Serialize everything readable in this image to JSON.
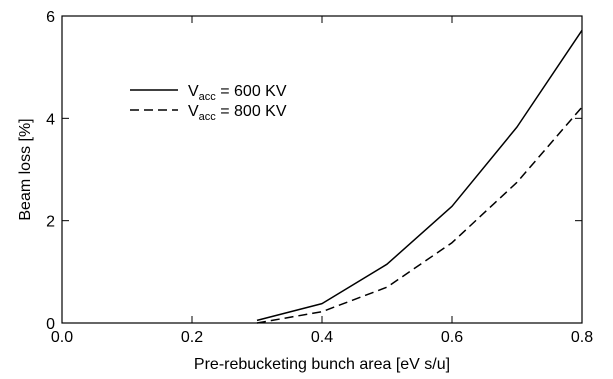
{
  "chart_data": {
    "type": "line",
    "title": "",
    "xlabel": "Pre-rebucketing bunch area [eV s/u]",
    "ylabel": "Beam loss [%]",
    "xlim": [
      0.0,
      0.8
    ],
    "ylim": [
      0,
      6
    ],
    "xticks": [
      0.0,
      0.2,
      0.4,
      0.6,
      0.8
    ],
    "xtick_labels": [
      "0.0",
      "0.2",
      "0.4",
      "0.6",
      "0.8"
    ],
    "yticks": [
      0,
      2,
      4,
      6
    ],
    "ytick_labels": [
      "0",
      "2",
      "4",
      "6"
    ],
    "grid": false,
    "legend_position": "upper-left",
    "series": [
      {
        "name": "V_acc = 600 KV",
        "legend": {
          "base": "V",
          "sub": "acc",
          "rest": " = 600 KV"
        },
        "style": "solid",
        "x": [
          0.3,
          0.4,
          0.5,
          0.6,
          0.7,
          0.8
        ],
        "y": [
          0.05,
          0.38,
          1.15,
          2.28,
          3.83,
          5.72
        ]
      },
      {
        "name": "V_acc = 800 KV",
        "legend": {
          "base": "V",
          "sub": "acc",
          "rest": " = 800 KV"
        },
        "style": "dashed",
        "x": [
          0.3,
          0.4,
          0.5,
          0.6,
          0.7,
          0.8
        ],
        "y": [
          0.0,
          0.22,
          0.7,
          1.57,
          2.75,
          4.22
        ]
      }
    ]
  }
}
